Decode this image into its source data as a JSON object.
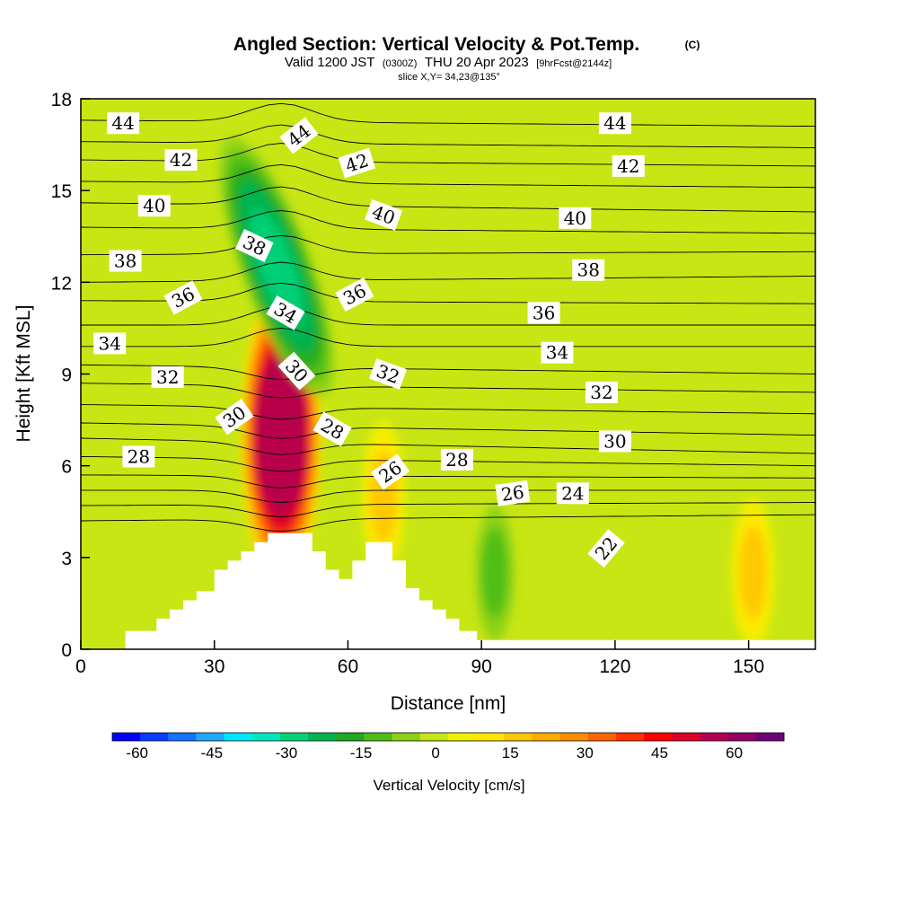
{
  "chart_data": {
    "type": "heatmap",
    "title": "Angled Section: Vertical Velocity & Pot.Temp.",
    "title_mark": "(C)",
    "subtitle_valid": "Valid 1200 JST",
    "subtitle_utc": "(0300Z)",
    "subtitle_date": "THU 20 Apr 2023",
    "subtitle_fcst": "[9hrFcst@2144z]",
    "subtitle_slice": "slice X,Y= 34,23@135°",
    "xlabel": "Distance [nm]",
    "ylabel": "Height [Kft MSL]",
    "xlim": [
      0,
      165
    ],
    "ylim": [
      0,
      18
    ],
    "x_ticks": [
      0,
      30,
      60,
      90,
      120,
      150
    ],
    "y_ticks": [
      0,
      3,
      6,
      9,
      12,
      15,
      18
    ],
    "colorbar": {
      "label": "Vertical Velocity [cm/s]",
      "ticks": [
        -60,
        -45,
        -30,
        -15,
        0,
        15,
        30,
        45,
        60
      ],
      "range": [
        -65,
        70
      ],
      "colors": [
        "#0000ff",
        "#0a3cff",
        "#1473ff",
        "#1eaaff",
        "#00e6ff",
        "#00e6be",
        "#00d278",
        "#00b450",
        "#20aa20",
        "#50be14",
        "#8cd214",
        "#c8e614",
        "#f0f000",
        "#ffe600",
        "#ffc800",
        "#ffaa00",
        "#ff8c00",
        "#ff6400",
        "#ff3200",
        "#ff0000",
        "#dc0028",
        "#b40050",
        "#960064",
        "#6e0078"
      ]
    },
    "velocity_features": [
      {
        "kind": "updraft",
        "x": 45,
        "y": 7,
        "peak": 68
      },
      {
        "kind": "downdraft",
        "x": 44,
        "y": 12.5,
        "peak": -35
      },
      {
        "kind": "downdraft",
        "x": 93,
        "y": 2.5,
        "peak": -15
      },
      {
        "kind": "updraft",
        "x": 68,
        "y": 5,
        "peak": 20
      },
      {
        "kind": "updraft",
        "x": 151,
        "y": 2.5,
        "peak": 20
      }
    ],
    "terrain": [
      [
        10,
        0
      ],
      [
        10,
        0.6
      ],
      [
        17,
        0.6
      ],
      [
        17,
        1.0
      ],
      [
        20,
        1.0
      ],
      [
        20,
        1.3
      ],
      [
        23,
        1.3
      ],
      [
        23,
        1.6
      ],
      [
        26,
        1.6
      ],
      [
        26,
        1.9
      ],
      [
        30,
        1.9
      ],
      [
        30,
        2.6
      ],
      [
        33,
        2.6
      ],
      [
        33,
        2.9
      ],
      [
        36,
        2.9
      ],
      [
        36,
        3.2
      ],
      [
        39,
        3.2
      ],
      [
        39,
        3.5
      ],
      [
        42,
        3.5
      ],
      [
        42,
        3.8
      ],
      [
        52,
        3.8
      ],
      [
        52,
        3.2
      ],
      [
        55,
        3.2
      ],
      [
        55,
        2.6
      ],
      [
        58,
        2.6
      ],
      [
        58,
        2.3
      ],
      [
        61,
        2.3
      ],
      [
        61,
        2.9
      ],
      [
        64,
        2.9
      ],
      [
        64,
        3.5
      ],
      [
        70,
        3.5
      ],
      [
        70,
        2.9
      ],
      [
        73,
        2.9
      ],
      [
        73,
        2.0
      ],
      [
        76,
        2.0
      ],
      [
        76,
        1.6
      ],
      [
        79,
        1.6
      ],
      [
        79,
        1.3
      ],
      [
        82,
        1.3
      ],
      [
        82,
        1.0
      ],
      [
        85,
        1.0
      ],
      [
        85,
        0.6
      ],
      [
        89,
        0.6
      ],
      [
        89,
        0.3
      ],
      [
        165,
        0.3
      ],
      [
        165,
        0
      ]
    ],
    "isentropes": [
      {
        "theta": 44,
        "y_left": 17.3,
        "y_right": 17.1
      },
      {
        "theta": 43,
        "y_left": 16.6,
        "y_right": 16.4
      },
      {
        "theta": 42,
        "y_left": 16.0,
        "y_right": 15.8
      },
      {
        "theta": 41,
        "y_left": 15.3,
        "y_right": 15.1
      },
      {
        "theta": 40,
        "y_left": 14.6,
        "y_right": 14.3
      },
      {
        "theta": 39,
        "y_left": 13.8,
        "y_right": 13.6
      },
      {
        "theta": 38,
        "y_left": 12.9,
        "y_right": 13.0
      },
      {
        "theta": 37,
        "y_left": 12.0,
        "y_right": 12.2
      },
      {
        "theta": 36,
        "y_left": 11.4,
        "y_right": 11.3
      },
      {
        "theta": 35,
        "y_left": 10.6,
        "y_right": 10.6
      },
      {
        "theta": 34,
        "y_left": 9.9,
        "y_right": 9.9
      },
      {
        "theta": 33,
        "y_left": 9.3,
        "y_right": 9.0
      },
      {
        "theta": 32,
        "y_left": 8.7,
        "y_right": 8.4
      },
      {
        "theta": 31,
        "y_left": 8.0,
        "y_right": 7.7
      },
      {
        "theta": 30,
        "y_left": 7.4,
        "y_right": 7.0
      },
      {
        "theta": 29,
        "y_left": 6.9,
        "y_right": 6.4
      },
      {
        "theta": 28,
        "y_left": 6.3,
        "y_right": 6.0
      },
      {
        "theta": 27,
        "y_left": 5.7,
        "y_right": 5.6
      },
      {
        "theta": 26,
        "y_left": 5.2,
        "y_right": 5.2
      },
      {
        "theta": 25,
        "y_left": 4.7,
        "y_right": 4.8
      },
      {
        "theta": 24,
        "y_left": 4.2,
        "y_right": 4.4
      }
    ],
    "contour_labels": [
      {
        "text": "44",
        "x": 9.5,
        "y": 17.2,
        "angle": 0
      },
      {
        "text": "42",
        "x": 22.5,
        "y": 16.0,
        "angle": 0
      },
      {
        "text": "40",
        "x": 16.5,
        "y": 14.5,
        "angle": 0
      },
      {
        "text": "38",
        "x": 10,
        "y": 12.7,
        "angle": 0
      },
      {
        "text": "36",
        "x": 23,
        "y": 11.5,
        "angle": -28
      },
      {
        "text": "34",
        "x": 6.5,
        "y": 10.0,
        "angle": 0
      },
      {
        "text": "32",
        "x": 19.5,
        "y": 8.9,
        "angle": 0
      },
      {
        "text": "30",
        "x": 34.5,
        "y": 7.6,
        "angle": -35
      },
      {
        "text": "28",
        "x": 13,
        "y": 6.3,
        "angle": 0
      },
      {
        "text": "44",
        "x": 49,
        "y": 16.8,
        "angle": -38
      },
      {
        "text": "42",
        "x": 62,
        "y": 15.9,
        "angle": -18
      },
      {
        "text": "40",
        "x": 68,
        "y": 14.2,
        "angle": 20
      },
      {
        "text": "38",
        "x": 39,
        "y": 13.2,
        "angle": 25
      },
      {
        "text": "36",
        "x": 61.5,
        "y": 11.6,
        "angle": -28
      },
      {
        "text": "34",
        "x": 46,
        "y": 11.0,
        "angle": 30
      },
      {
        "text": "30",
        "x": 48.5,
        "y": 9.1,
        "angle": 48
      },
      {
        "text": "32",
        "x": 69,
        "y": 9.0,
        "angle": 20
      },
      {
        "text": "28",
        "x": 56.5,
        "y": 7.2,
        "angle": 30
      },
      {
        "text": "26",
        "x": 69.5,
        "y": 5.8,
        "angle": -35
      },
      {
        "text": "28",
        "x": 84.5,
        "y": 6.2,
        "angle": 0
      },
      {
        "text": "26",
        "x": 97,
        "y": 5.1,
        "angle": -8
      },
      {
        "text": "24",
        "x": 110.5,
        "y": 5.1,
        "angle": 0
      },
      {
        "text": "22",
        "x": 118,
        "y": 3.3,
        "angle": -50
      },
      {
        "text": "44",
        "x": 120,
        "y": 17.2,
        "angle": 0
      },
      {
        "text": "42",
        "x": 123,
        "y": 15.8,
        "angle": 0
      },
      {
        "text": "40",
        "x": 111,
        "y": 14.1,
        "angle": 0
      },
      {
        "text": "38",
        "x": 114,
        "y": 12.4,
        "angle": 0
      },
      {
        "text": "36",
        "x": 104,
        "y": 11.0,
        "angle": 0
      },
      {
        "text": "34",
        "x": 107,
        "y": 9.7,
        "angle": 0
      },
      {
        "text": "32",
        "x": 117,
        "y": 8.4,
        "angle": 0
      },
      {
        "text": "30",
        "x": 120,
        "y": 6.8,
        "angle": 0
      }
    ]
  }
}
